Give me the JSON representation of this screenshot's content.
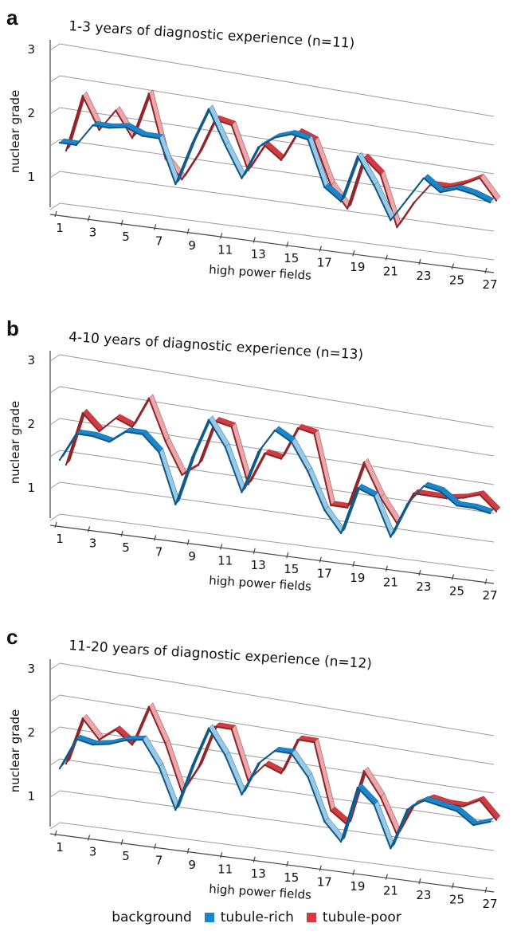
{
  "colors": {
    "tubule_rich": "#1b86c9",
    "tubule_poor": "#d23b41"
  },
  "legend": {
    "title": "background",
    "items": [
      "tubule-rich",
      "tubule-poor"
    ]
  },
  "chart_data": [
    {
      "type": "line",
      "panel": "a",
      "title": "1-3 years of diagnostic experience (n=11)",
      "xlabel": "high power fields",
      "ylabel": "nuclear grade",
      "ylim": [
        0.5,
        3
      ],
      "yticks": [
        1,
        2,
        3
      ],
      "xticks": [
        1,
        3,
        5,
        7,
        9,
        11,
        13,
        15,
        17,
        19,
        21,
        23,
        25,
        27
      ],
      "x": [
        1,
        2,
        3,
        4,
        5,
        6,
        7,
        8,
        9,
        10,
        11,
        12,
        13,
        14,
        15,
        16,
        17,
        18,
        19,
        20,
        21,
        22,
        23,
        24,
        25,
        26,
        27
      ],
      "series": [
        {
          "name": "tubule-rich",
          "values": [
            1.45,
            1.45,
            1.8,
            1.8,
            1.85,
            1.75,
            1.75,
            1.05,
            1.75,
            2.35,
            1.8,
            1.3,
            1.85,
            2.05,
            2.15,
            2.1,
            1.35,
            1.15,
            1.95,
            1.5,
            0.95,
            1.35,
            1.75,
            1.55,
            1.65,
            1.6,
            1.5
          ]
        },
        {
          "name": "tubule-poor",
          "values": [
            1.25,
            2.15,
            1.65,
            2.0,
            1.6,
            2.35,
            1.35,
            1.05,
            1.5,
            2.1,
            2.05,
            1.35,
            1.8,
            1.6,
            2.1,
            2.0,
            1.3,
            0.95,
            1.85,
            1.6,
            0.75,
            1.2,
            1.55,
            1.55,
            1.65,
            1.8,
            1.45
          ]
        }
      ]
    },
    {
      "type": "line",
      "panel": "b",
      "title": "4-10 years of diagnostic experience (n=13)",
      "xlabel": "high power fields",
      "ylabel": "nuclear grade",
      "ylim": [
        0.5,
        3
      ],
      "yticks": [
        1,
        2,
        3
      ],
      "xticks": [
        1,
        3,
        5,
        7,
        9,
        11,
        13,
        15,
        17,
        19,
        21,
        23,
        25,
        27
      ],
      "x": [
        1,
        2,
        3,
        4,
        5,
        6,
        7,
        8,
        9,
        10,
        11,
        12,
        13,
        14,
        15,
        16,
        17,
        18,
        19,
        20,
        21,
        22,
        23,
        24,
        25,
        26,
        27
      ],
      "series": [
        {
          "name": "tubule-rich",
          "values": [
            1.35,
            1.8,
            1.8,
            1.75,
            1.95,
            1.95,
            1.7,
            0.9,
            1.7,
            2.35,
            1.95,
            1.25,
            1.95,
            2.35,
            2.2,
            1.75,
            1.15,
            0.8,
            1.6,
            1.5,
            0.85,
            1.45,
            1.8,
            1.75,
            1.55,
            1.55,
            1.5
          ]
        },
        {
          "name": "tubule-poor",
          "values": [
            1.2,
            2.05,
            1.8,
            2.05,
            1.95,
            2.45,
            1.8,
            1.3,
            1.5,
            2.25,
            2.2,
            1.3,
            1.85,
            1.8,
            2.35,
            2.3,
            1.15,
            1.15,
            1.95,
            1.4,
            1.0,
            1.55,
            1.55,
            1.55,
            1.6,
            1.7,
            1.45
          ]
        }
      ]
    },
    {
      "type": "line",
      "panel": "c",
      "title": "11-20 years of diagnostic experience (n=12)",
      "xlabel": "high power fields",
      "ylabel": "nuclear grade",
      "ylim": [
        0.5,
        3
      ],
      "yticks": [
        1,
        2,
        3
      ],
      "xticks": [
        1,
        3,
        5,
        7,
        9,
        11,
        13,
        15,
        17,
        19,
        21,
        23,
        25,
        27
      ],
      "x": [
        1,
        2,
        3,
        4,
        5,
        6,
        7,
        8,
        9,
        10,
        11,
        12,
        13,
        14,
        15,
        16,
        17,
        18,
        19,
        20,
        21,
        22,
        23,
        24,
        25,
        26,
        27
      ],
      "series": [
        {
          "name": "tubule-rich",
          "values": [
            1.35,
            1.85,
            1.8,
            1.85,
            1.95,
            2.0,
            1.6,
            0.95,
            1.7,
            2.35,
            1.95,
            1.35,
            1.9,
            2.15,
            2.15,
            1.8,
            1.1,
            0.8,
            1.75,
            1.5,
            0.8,
            1.5,
            1.7,
            1.65,
            1.6,
            1.4,
            1.5
          ]
        },
        {
          "name": "tubule-poor",
          "values": [
            1.35,
            2.1,
            1.8,
            2.0,
            1.8,
            2.45,
            1.9,
            1.15,
            1.6,
            2.3,
            2.3,
            1.5,
            1.8,
            1.7,
            2.3,
            2.3,
            1.2,
            1.0,
            1.95,
            1.55,
            0.95,
            1.5,
            1.65,
            1.6,
            1.6,
            1.75,
            1.45
          ]
        }
      ]
    }
  ]
}
